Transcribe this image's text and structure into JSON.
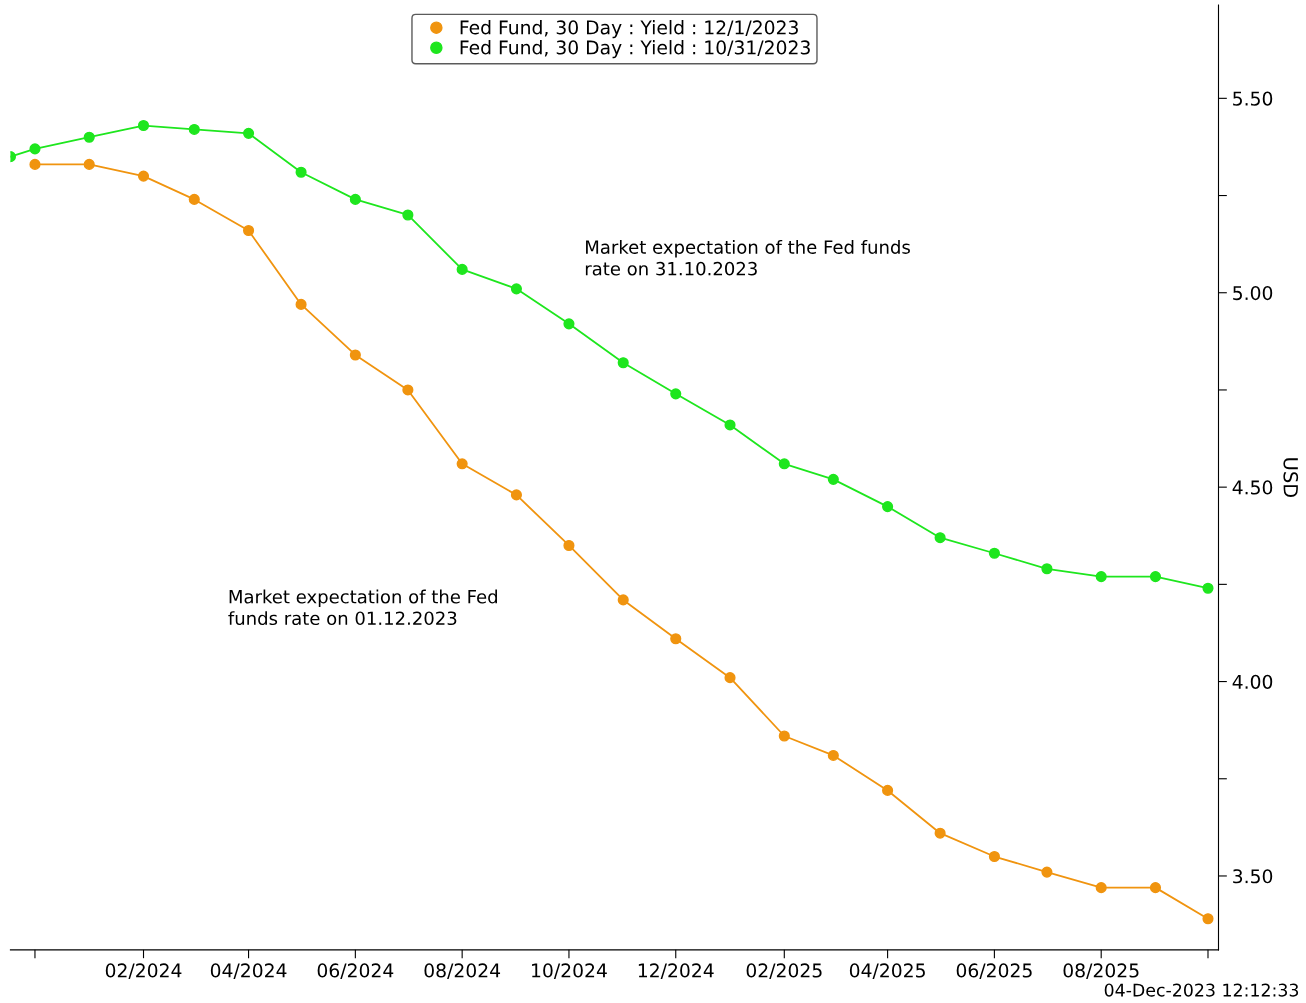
{
  "chart_data": {
    "type": "line",
    "marker": "circle",
    "grid": false,
    "legend": "top",
    "ylabel": "USD",
    "xlim": [
      "2023-11-17",
      "2025-10-07"
    ],
    "xticks": [
      {
        "value": "2023-12",
        "label": null
      },
      {
        "value": "2024-02",
        "label": "02/2024"
      },
      {
        "value": "2024-04",
        "label": "04/2024"
      },
      {
        "value": "2024-06",
        "label": "06/2024"
      },
      {
        "value": "2024-08",
        "label": "08/2024"
      },
      {
        "value": "2024-10",
        "label": "10/2024"
      },
      {
        "value": "2024-12",
        "label": "12/2024"
      },
      {
        "value": "2025-02",
        "label": "02/2025"
      },
      {
        "value": "2025-04",
        "label": "04/2025"
      },
      {
        "value": "2025-06",
        "label": "06/2025"
      },
      {
        "value": "2025-08",
        "label": "08/2025"
      },
      {
        "value": "2025-10",
        "label": null
      }
    ],
    "ylim": [
      3.31,
      5.74
    ],
    "yticks": [
      {
        "value": 3.5,
        "label": "3.50"
      },
      {
        "value": 3.75,
        "label": null
      },
      {
        "value": 4.0,
        "label": "4.00"
      },
      {
        "value": 4.25,
        "label": null
      },
      {
        "value": 4.5,
        "label": "4.50"
      },
      {
        "value": 4.75,
        "label": null
      },
      {
        "value": 5.0,
        "label": "5.00"
      },
      {
        "value": 5.25,
        "label": null
      },
      {
        "value": 5.5,
        "label": "5.50"
      }
    ],
    "x": [
      "2023-12",
      "2024-01",
      "2024-02",
      "2024-03",
      "2024-04",
      "2024-05",
      "2024-06",
      "2024-07",
      "2024-08",
      "2024-09",
      "2024-10",
      "2024-11",
      "2024-12",
      "2025-01",
      "2025-02",
      "2025-03",
      "2025-04",
      "2025-05",
      "2025-06",
      "2025-07",
      "2025-08",
      "2025-09",
      "2025-10"
    ],
    "series": [
      {
        "name": "Fed Fund, 30 Day : Yield : 12/1/2023",
        "color": "#f0940f",
        "values": [
          5.33,
          5.33,
          5.3,
          5.24,
          5.16,
          4.97,
          4.84,
          4.75,
          4.56,
          4.48,
          4.35,
          4.21,
          4.11,
          4.01,
          3.86,
          3.81,
          3.72,
          3.61,
          3.55,
          3.51,
          3.47,
          3.47,
          3.39
        ]
      },
      {
        "name": "Fed Fund, 30 Day : Yield : 10/31/2023",
        "color": "#1ee61e",
        "x": [
          "2023-11-17",
          "2023-12",
          "2024-01",
          "2024-02",
          "2024-03",
          "2024-04",
          "2024-05",
          "2024-06",
          "2024-07",
          "2024-08",
          "2024-09",
          "2024-10",
          "2024-11",
          "2024-12",
          "2025-01",
          "2025-02",
          "2025-03",
          "2025-04",
          "2025-05",
          "2025-06",
          "2025-07",
          "2025-08",
          "2025-09",
          "2025-10"
        ],
        "values": [
          5.35,
          5.37,
          5.4,
          5.43,
          5.42,
          5.41,
          5.31,
          5.24,
          5.2,
          5.06,
          5.01,
          4.92,
          4.82,
          4.74,
          4.66,
          4.56,
          4.52,
          4.45,
          4.37,
          4.33,
          4.29,
          4.27,
          4.27,
          4.24
        ]
      }
    ],
    "annotations": [
      "Market expectation of the Fed funds\nrate on 31.10.2023",
      "Market expectation of the Fed\nfunds rate on 01.12.2023",
      "04-Dec-2023 12:12:33"
    ]
  }
}
